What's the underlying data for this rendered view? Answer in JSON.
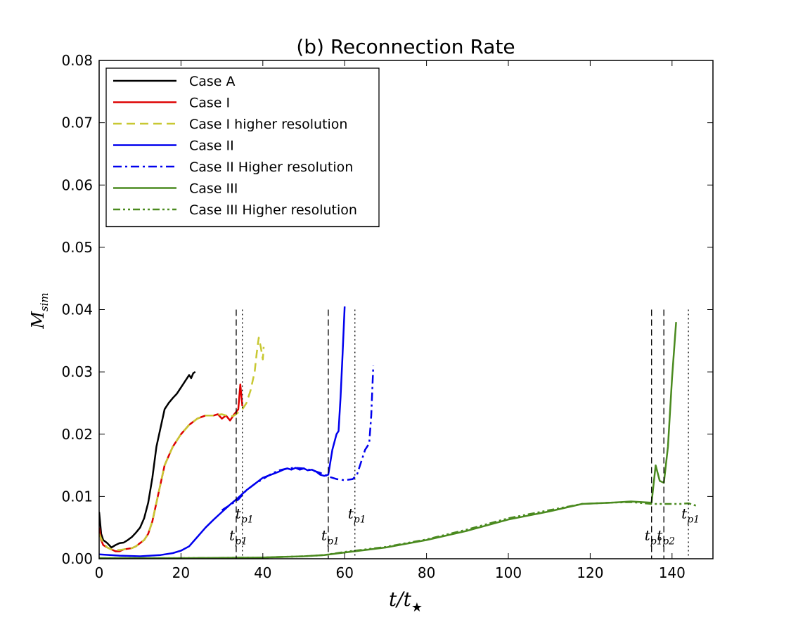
{
  "chart_data": {
    "type": "line",
    "title": "(b) Reconnection Rate",
    "xlabel": "t/t",
    "xlabel_subscript": "★",
    "ylabel": "M",
    "ylabel_subscript": "sim",
    "xlim": [
      0,
      150
    ],
    "ylim": [
      0,
      0.08
    ],
    "xticks": [
      "0",
      "20",
      "40",
      "60",
      "80",
      "100",
      "120",
      "140"
    ],
    "yticks": [
      "0.00",
      "0.01",
      "0.02",
      "0.03",
      "0.04",
      "0.05",
      "0.06",
      "0.07",
      "0.08"
    ],
    "grid": false,
    "legend_position": "top-left",
    "series": [
      {
        "name": "Case A",
        "color": "#000000",
        "style": "solid",
        "x": [
          0,
          0.5,
          1,
          2,
          3,
          4,
          5,
          6,
          7,
          8,
          9,
          10,
          11,
          12,
          13,
          14,
          15,
          16,
          17,
          18,
          19,
          20,
          21,
          22,
          22.5,
          23,
          23.5
        ],
        "y": [
          0.0075,
          0.004,
          0.003,
          0.0025,
          0.0018,
          0.0022,
          0.0025,
          0.0026,
          0.003,
          0.0035,
          0.0042,
          0.005,
          0.0065,
          0.009,
          0.013,
          0.018,
          0.021,
          0.024,
          0.025,
          0.0258,
          0.0265,
          0.0275,
          0.0285,
          0.0295,
          0.029,
          0.0298,
          0.03
        ]
      },
      {
        "name": "Case I",
        "color": "#dd0000",
        "style": "solid",
        "x": [
          0,
          0.5,
          1,
          2,
          3,
          4,
          5,
          6,
          7,
          8,
          9,
          10,
          11,
          12,
          13,
          14,
          15,
          16,
          17,
          18,
          20,
          22,
          24,
          26,
          28,
          29,
          30,
          31,
          32,
          33,
          34,
          34.5,
          35
        ],
        "y": [
          0.005,
          0.003,
          0.0022,
          0.0018,
          0.0015,
          0.0012,
          0.0012,
          0.0015,
          0.0016,
          0.0017,
          0.002,
          0.0025,
          0.003,
          0.004,
          0.006,
          0.009,
          0.012,
          0.015,
          0.0165,
          0.018,
          0.02,
          0.0215,
          0.0225,
          0.023,
          0.023,
          0.0232,
          0.0225,
          0.023,
          0.0222,
          0.0232,
          0.024,
          0.028,
          0.0245
        ]
      },
      {
        "name": "Case I higher resolution",
        "color": "#c8c832",
        "style": "dashed",
        "x": [
          0,
          1,
          2,
          3,
          4,
          5,
          6,
          7,
          8,
          9,
          10,
          11,
          12,
          13,
          14,
          15,
          16,
          17,
          18,
          20,
          22,
          24,
          26,
          28,
          30,
          32,
          33,
          34,
          35,
          36,
          37,
          38,
          38.5,
          39,
          39.5,
          40,
          40.2
        ],
        "y": [
          0.004,
          0.0025,
          0.0018,
          0.0015,
          0.0014,
          0.0014,
          0.0015,
          0.0016,
          0.0017,
          0.002,
          0.0025,
          0.003,
          0.004,
          0.006,
          0.009,
          0.012,
          0.015,
          0.0165,
          0.018,
          0.02,
          0.0215,
          0.0225,
          0.023,
          0.023,
          0.0232,
          0.0228,
          0.023,
          0.0235,
          0.024,
          0.025,
          0.027,
          0.03,
          0.033,
          0.0355,
          0.034,
          0.032,
          0.034
        ]
      },
      {
        "name": "Case II",
        "color": "#0000ee",
        "style": "solid",
        "x": [
          0,
          5,
          10,
          15,
          18,
          20,
          22,
          24,
          26,
          28,
          30,
          32,
          34,
          36,
          38,
          40,
          42,
          44,
          45,
          46,
          47,
          48,
          49,
          50,
          51,
          52,
          53,
          54,
          55,
          56,
          57,
          58,
          58.5,
          59,
          59.5,
          60
        ],
        "y": [
          0.0007,
          0.0005,
          0.0004,
          0.0006,
          0.0009,
          0.0013,
          0.002,
          0.0035,
          0.005,
          0.0063,
          0.0075,
          0.0087,
          0.0098,
          0.011,
          0.012,
          0.013,
          0.0135,
          0.014,
          0.0143,
          0.0145,
          0.0143,
          0.0146,
          0.0143,
          0.0145,
          0.0142,
          0.0143,
          0.014,
          0.0135,
          0.0133,
          0.0135,
          0.0175,
          0.02,
          0.0205,
          0.026,
          0.033,
          0.0405
        ]
      },
      {
        "name": "Case II Higher resolution",
        "color": "#0000ee",
        "style": "dashdot",
        "x": [
          30,
          34,
          36,
          38,
          40,
          42,
          44,
          46,
          48,
          50,
          52,
          54,
          56,
          58,
          60,
          62,
          63,
          64,
          65,
          66,
          66.5,
          67
        ],
        "y": [
          0.0078,
          0.0095,
          0.011,
          0.012,
          0.0128,
          0.0136,
          0.0142,
          0.0145,
          0.0146,
          0.0145,
          0.0142,
          0.0138,
          0.0132,
          0.0128,
          0.0126,
          0.0128,
          0.0135,
          0.0155,
          0.0175,
          0.0185,
          0.023,
          0.031
        ]
      },
      {
        "name": "Case III",
        "color": "#4a8a1f",
        "style": "solid",
        "x": [
          0,
          20,
          40,
          50,
          55,
          60,
          70,
          80,
          90,
          100,
          110,
          118,
          125,
          130,
          135,
          136,
          137,
          138,
          139,
          140,
          141
        ],
        "y": [
          0.0001,
          0.0001,
          0.0002,
          0.0004,
          0.0006,
          0.001,
          0.0018,
          0.003,
          0.0045,
          0.0063,
          0.0076,
          0.0088,
          0.009,
          0.0092,
          0.009,
          0.015,
          0.0125,
          0.0122,
          0.018,
          0.029,
          0.038
        ]
      },
      {
        "name": "Case III Higher resolution",
        "color": "#4a8a1f",
        "style": "dashdotdot",
        "x": [
          0,
          20,
          40,
          50,
          55,
          60,
          70,
          80,
          90,
          100,
          110,
          118,
          125,
          130,
          135,
          138,
          140,
          142,
          144,
          145,
          146
        ],
        "y": [
          0.0001,
          0.0001,
          0.0002,
          0.0004,
          0.0006,
          0.0011,
          0.0019,
          0.0031,
          0.0047,
          0.0065,
          0.0078,
          0.0088,
          0.009,
          0.0091,
          0.0088,
          0.0088,
          0.0088,
          0.0088,
          0.0089,
          0.0087,
          0.0085
        ]
      }
    ],
    "vlines": [
      {
        "x": 33.5,
        "style": "dashed",
        "label": "t",
        "sub": "p1",
        "label_y": 0.003
      },
      {
        "x": 35.0,
        "style": "dotted",
        "label": "t",
        "sub": "p1",
        "label_y": 0.0065
      },
      {
        "x": 56.0,
        "style": "dashed",
        "label": "t",
        "sub": "p1",
        "label_y": 0.003
      },
      {
        "x": 62.5,
        "style": "dotted",
        "label": "t",
        "sub": "p1",
        "label_y": 0.0065
      },
      {
        "x": 135.0,
        "style": "dashed",
        "label": "t",
        "sub": "p1",
        "label_y": 0.003
      },
      {
        "x": 138.0,
        "style": "dashed",
        "label": "t",
        "sub": "p2",
        "label_y": 0.003
      },
      {
        "x": 144.0,
        "style": "dotted",
        "label": "t",
        "sub": "p1",
        "label_y": 0.0065
      }
    ],
    "vline_ymax": 0.04
  }
}
